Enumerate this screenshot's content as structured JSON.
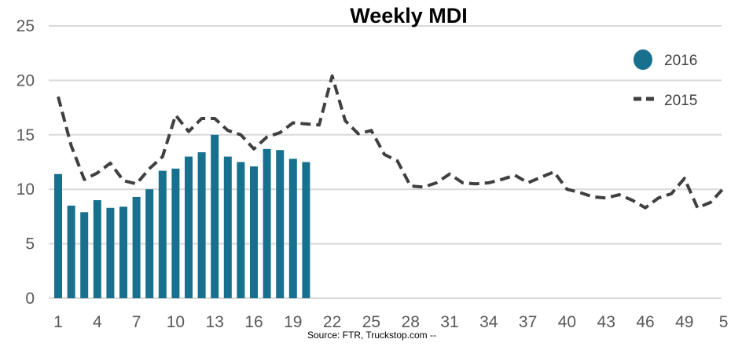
{
  "chart_data": {
    "type": "bar",
    "title": "Weekly MDI",
    "xlabel": "",
    "ylabel": "",
    "ylim": [
      0,
      25
    ],
    "yticks": [
      "0",
      "5",
      "10",
      "15",
      "20",
      "25"
    ],
    "xlim": [
      1,
      52
    ],
    "xticks": [
      "1",
      "4",
      "7",
      "10",
      "13",
      "16",
      "19",
      "22",
      "25",
      "28",
      "31",
      "34",
      "37",
      "40",
      "43",
      "46",
      "49",
      "5"
    ],
    "grid": true,
    "legend_position": "top-right",
    "series": [
      {
        "name": "2016",
        "type": "bar",
        "color": "#17708d",
        "x": [
          1,
          2,
          3,
          4,
          5,
          6,
          7,
          8,
          9,
          10,
          11,
          12,
          13,
          14,
          15,
          16,
          17,
          18,
          19,
          20
        ],
        "values": [
          11.4,
          8.5,
          7.9,
          9.0,
          8.3,
          8.4,
          9.3,
          10.0,
          11.7,
          11.9,
          13.0,
          13.4,
          15.0,
          13.0,
          12.5,
          12.1,
          13.7,
          13.6,
          12.8,
          12.5
        ]
      },
      {
        "name": "2015",
        "type": "line",
        "style": "dashed",
        "color": "#404040",
        "x": [
          1,
          2,
          3,
          4,
          5,
          6,
          7,
          8,
          9,
          10,
          11,
          12,
          13,
          14,
          15,
          16,
          17,
          18,
          19,
          20,
          21,
          22,
          23,
          24,
          25,
          26,
          27,
          28,
          29,
          30,
          31,
          32,
          33,
          34,
          35,
          36,
          37,
          38,
          39,
          40,
          41,
          42,
          43,
          44,
          45,
          46,
          47,
          48,
          49,
          50,
          51,
          52
        ],
        "values": [
          18.5,
          14.0,
          10.9,
          11.5,
          12.4,
          10.8,
          10.5,
          11.9,
          13.0,
          16.8,
          15.3,
          16.5,
          16.5,
          15.4,
          15.0,
          13.7,
          14.8,
          15.2,
          16.1,
          16.0,
          15.9,
          20.4,
          16.3,
          15.1,
          15.4,
          13.2,
          12.6,
          10.3,
          10.2,
          10.6,
          11.4,
          10.6,
          10.5,
          10.6,
          10.9,
          11.3,
          10.6,
          11.1,
          11.6,
          10.0,
          9.7,
          9.3,
          9.2,
          9.5,
          9.0,
          8.3,
          9.2,
          9.6,
          11.0,
          8.3,
          8.8,
          10.1
        ]
      }
    ],
    "annotations": [
      "Source: FTR, Truckstop.com --"
    ]
  }
}
